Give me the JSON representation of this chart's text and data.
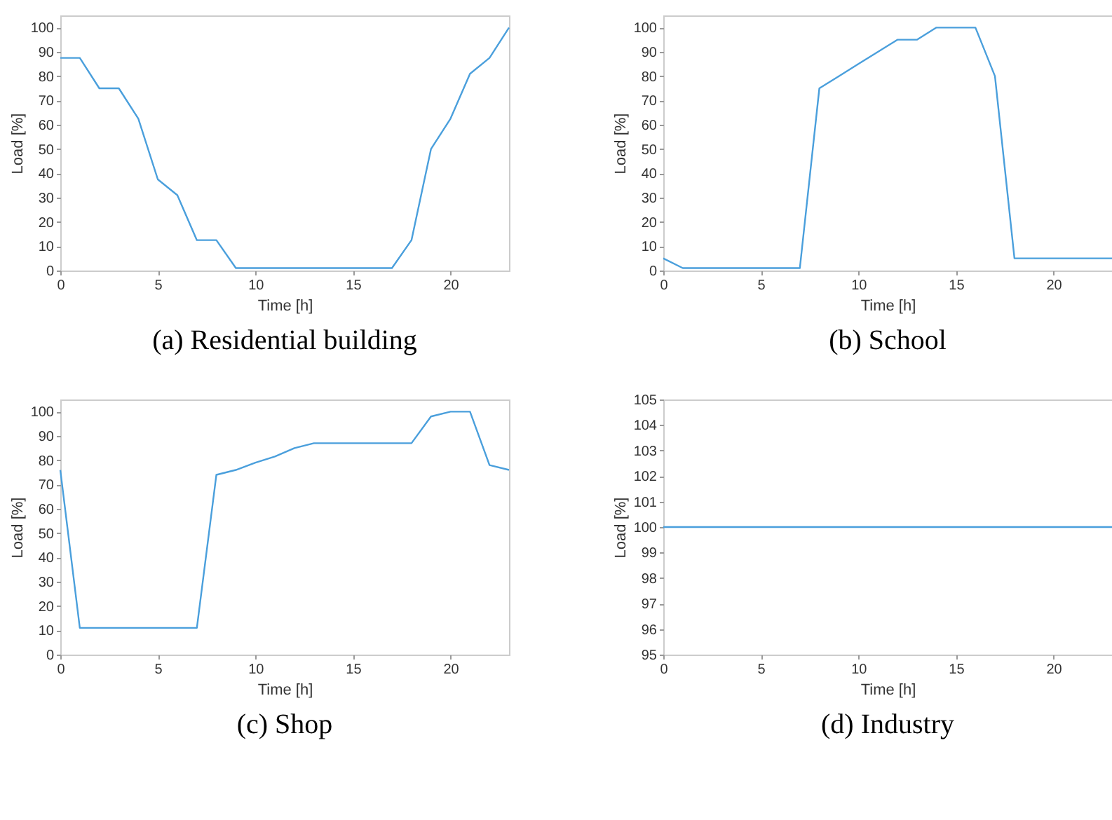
{
  "chart_data": [
    {
      "type": "line",
      "title": "(a) Residential building",
      "xlabel": "Time [h]",
      "ylabel": "Load [%]",
      "x": [
        0,
        1,
        2,
        3,
        4,
        5,
        6,
        7,
        8,
        9,
        10,
        11,
        12,
        13,
        14,
        15,
        16,
        17,
        18,
        19,
        20,
        21,
        22,
        23
      ],
      "series": [
        {
          "color": "#4a9fdc",
          "values": [
            87.5,
            87.5,
            75,
            75,
            62.5,
            37.5,
            31,
            12.5,
            12.5,
            1,
            1,
            1,
            1,
            1,
            1,
            1,
            1,
            1,
            12.5,
            50,
            62.5,
            81,
            87.5,
            100
          ]
        }
      ],
      "xlim": [
        0,
        23
      ],
      "ylim": [
        0,
        105
      ],
      "xticks": [
        0,
        5,
        10,
        15,
        20
      ],
      "yticks": [
        0,
        10,
        20,
        30,
        40,
        50,
        60,
        70,
        80,
        90,
        100
      ],
      "grid": false
    },
    {
      "type": "line",
      "title": "(b) School",
      "xlabel": "Time [h]",
      "ylabel": "Load [%]",
      "x": [
        0,
        1,
        2,
        3,
        4,
        5,
        6,
        7,
        8,
        9,
        10,
        11,
        12,
        13,
        14,
        15,
        16,
        17,
        18,
        19,
        20,
        21,
        22,
        23
      ],
      "series": [
        {
          "color": "#4a9fdc",
          "values": [
            5,
            1,
            1,
            1,
            1,
            1,
            1,
            1,
            75,
            80,
            85,
            90,
            95,
            95,
            100,
            100,
            100,
            80,
            5,
            5,
            5,
            5,
            5,
            5
          ]
        }
      ],
      "xlim": [
        0,
        23
      ],
      "ylim": [
        0,
        105
      ],
      "xticks": [
        0,
        5,
        10,
        15,
        20
      ],
      "yticks": [
        0,
        10,
        20,
        30,
        40,
        50,
        60,
        70,
        80,
        90,
        100
      ],
      "grid": false
    },
    {
      "type": "line",
      "title": "(c) Shop",
      "xlabel": "Time [h]",
      "ylabel": "Load [%]",
      "x": [
        0,
        1,
        2,
        3,
        4,
        5,
        6,
        7,
        8,
        9,
        10,
        11,
        12,
        13,
        14,
        15,
        16,
        17,
        18,
        19,
        20,
        21,
        22,
        23
      ],
      "series": [
        {
          "color": "#4a9fdc",
          "values": [
            76,
            11,
            11,
            11,
            11,
            11,
            11,
            11,
            74,
            76,
            79,
            81.5,
            85,
            87,
            87,
            87,
            87,
            87,
            87,
            98,
            100,
            100,
            78,
            76
          ]
        }
      ],
      "xlim": [
        0,
        23
      ],
      "ylim": [
        0,
        105
      ],
      "xticks": [
        0,
        5,
        10,
        15,
        20
      ],
      "yticks": [
        0,
        10,
        20,
        30,
        40,
        50,
        60,
        70,
        80,
        90,
        100
      ],
      "grid": false
    },
    {
      "type": "line",
      "title": "(d) Industry",
      "xlabel": "Time [h]",
      "ylabel": "Load [%]",
      "x": [
        0,
        1,
        2,
        3,
        4,
        5,
        6,
        7,
        8,
        9,
        10,
        11,
        12,
        13,
        14,
        15,
        16,
        17,
        18,
        19,
        20,
        21,
        22,
        23
      ],
      "series": [
        {
          "color": "#4a9fdc",
          "values": [
            100,
            100,
            100,
            100,
            100,
            100,
            100,
            100,
            100,
            100,
            100,
            100,
            100,
            100,
            100,
            100,
            100,
            100,
            100,
            100,
            100,
            100,
            100,
            100
          ]
        }
      ],
      "xlim": [
        0,
        23
      ],
      "ylim": [
        95,
        105
      ],
      "xticks": [
        0,
        5,
        10,
        15,
        20
      ],
      "yticks": [
        95,
        96,
        97,
        98,
        99,
        100,
        101,
        102,
        103,
        104,
        105
      ],
      "grid": false
    }
  ]
}
